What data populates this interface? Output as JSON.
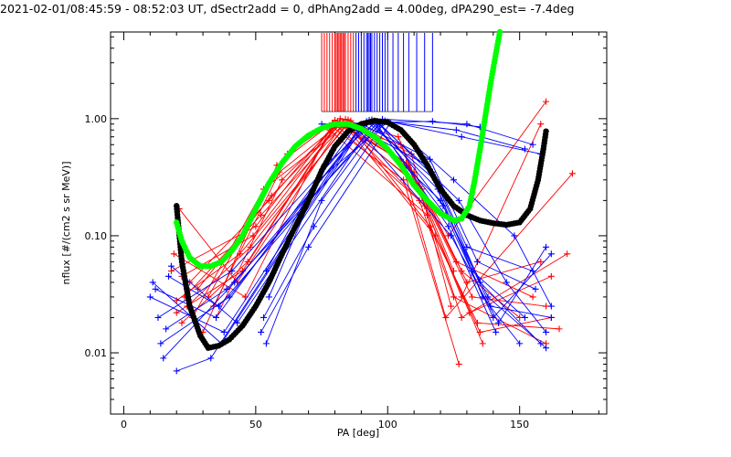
{
  "chart_data": {
    "type": "scatter",
    "title": "2021-02-01/08:45:59 - 08:52:03 UT, dSectr2add = 0, dPhAng2add = 4.00deg, dPA290_est=  -7.4deg",
    "xlabel": "PA [deg]",
    "ylabel": "nflux [#/(cm2 s sr MeV)]",
    "xlim": [
      -5,
      183
    ],
    "ylim": [
      0.003,
      5.5
    ],
    "yscale": "log",
    "x_ticks": [
      "0",
      "50",
      "100",
      "150"
    ],
    "x_tick_values": [
      0,
      50,
      100,
      150
    ],
    "y_ticks": [
      "0.01",
      "0.10",
      "1.00"
    ],
    "y_tick_values": [
      0.01,
      0.1,
      1.0
    ],
    "grid": false,
    "colors": {
      "red": "#ff0000",
      "blue": "#0000ff",
      "black": "#000000",
      "green": "#00ff00"
    },
    "red_sweeps": [
      [
        [
          20,
          0.022
        ],
        [
          45,
          0.05
        ],
        [
          82,
          1.0
        ],
        [
          110,
          0.35
        ],
        [
          128,
          0.05
        ],
        [
          150,
          0.02
        ]
      ],
      [
        [
          22,
          0.018
        ],
        [
          47,
          0.06
        ],
        [
          81,
          0.95
        ],
        [
          108,
          0.4
        ],
        [
          126,
          0.06
        ],
        [
          155,
          0.03
        ]
      ],
      [
        [
          18,
          0.05
        ],
        [
          50,
          0.12
        ],
        [
          80,
          0.9
        ],
        [
          112,
          0.2
        ],
        [
          125,
          0.03
        ],
        [
          160,
          0.012
        ]
      ],
      [
        [
          23,
          0.03
        ],
        [
          52,
          0.15
        ],
        [
          85,
          0.98
        ],
        [
          105,
          0.45
        ],
        [
          122,
          0.02
        ],
        [
          170,
          0.34
        ]
      ],
      [
        [
          25,
          0.04
        ],
        [
          55,
          0.2
        ],
        [
          79,
          0.85
        ],
        [
          106,
          0.3
        ],
        [
          127,
          0.008
        ]
      ],
      [
        [
          21,
          0.17
        ],
        [
          43,
          0.04
        ],
        [
          83,
          0.92
        ],
        [
          118,
          0.1
        ],
        [
          135,
          0.015
        ],
        [
          162,
          0.02
        ]
      ],
      [
        [
          24,
          0.025
        ],
        [
          48,
          0.08
        ],
        [
          84,
          0.88
        ],
        [
          113,
          0.25
        ],
        [
          130,
          0.04
        ],
        [
          158,
          0.06
        ]
      ],
      [
        [
          19,
          0.07
        ],
        [
          46,
          0.03
        ],
        [
          78,
          0.8
        ],
        [
          115,
          0.15
        ],
        [
          128,
          0.02
        ],
        [
          168,
          0.07
        ]
      ],
      [
        [
          26,
          0.02
        ],
        [
          53,
          0.25
        ],
        [
          86,
          0.96
        ],
        [
          109,
          0.5
        ],
        [
          124,
          0.025
        ]
      ],
      [
        [
          22,
          0.045
        ],
        [
          49,
          0.1
        ],
        [
          82,
          0.93
        ],
        [
          111,
          0.28
        ],
        [
          132,
          0.03
        ],
        [
          160,
          0.025
        ]
      ],
      [
        [
          35,
          0.02
        ],
        [
          60,
          0.3
        ],
        [
          81,
          0.9
        ],
        [
          107,
          0.42
        ],
        [
          123,
          0.1
        ],
        [
          160,
          1.4
        ]
      ],
      [
        [
          30,
          0.015
        ],
        [
          58,
          0.4
        ],
        [
          79,
          0.92
        ],
        [
          105,
          0.6
        ],
        [
          128,
          0.03
        ],
        [
          158,
          0.9
        ]
      ],
      [
        [
          32,
          0.03
        ],
        [
          62,
          0.5
        ],
        [
          80,
          0.97
        ],
        [
          104,
          0.7
        ],
        [
          125,
          0.05
        ]
      ],
      [
        [
          28,
          0.035
        ],
        [
          56,
          0.22
        ],
        [
          83,
          0.94
        ],
        [
          114,
          0.18
        ],
        [
          136,
          0.012
        ]
      ],
      [
        [
          20,
          0.028
        ],
        [
          44,
          0.07
        ],
        [
          85,
          0.91
        ],
        [
          116,
          0.12
        ],
        [
          134,
          0.018
        ],
        [
          165,
          0.016
        ]
      ],
      [
        [
          34,
          0.025
        ],
        [
          59,
          0.35
        ],
        [
          84,
          0.99
        ],
        [
          108,
          0.38
        ],
        [
          131,
          0.022
        ],
        [
          162,
          0.045
        ]
      ]
    ],
    "blue_sweeps": [
      [
        [
          12,
          0.035
        ],
        [
          35,
          0.02
        ],
        [
          88,
          0.85
        ],
        [
          115,
          0.4
        ],
        [
          132,
          0.05
        ],
        [
          152,
          0.02
        ]
      ],
      [
        [
          14,
          0.012
        ],
        [
          40,
          0.03
        ],
        [
          92,
          0.95
        ],
        [
          118,
          0.3
        ],
        [
          135,
          0.04
        ],
        [
          158,
          0.012
        ]
      ],
      [
        [
          10,
          0.03
        ],
        [
          38,
          0.015
        ],
        [
          90,
          0.9
        ],
        [
          120,
          0.2
        ],
        [
          138,
          0.03
        ],
        [
          160,
          0.011
        ]
      ],
      [
        [
          15,
          0.009
        ],
        [
          42,
          0.04
        ],
        [
          94,
          0.98
        ],
        [
          122,
          0.15
        ],
        [
          140,
          0.02
        ],
        [
          162,
          0.07
        ]
      ],
      [
        [
          17,
          0.045
        ],
        [
          36,
          0.025
        ],
        [
          96,
          0.92
        ],
        [
          117,
          0.35
        ],
        [
          130,
          0.08
        ],
        [
          155,
          0.05
        ]
      ],
      [
        [
          20,
          0.007
        ],
        [
          33,
          0.009
        ],
        [
          89,
          0.8
        ],
        [
          124,
          0.1
        ],
        [
          142,
          0.018
        ],
        [
          160,
          0.08
        ]
      ],
      [
        [
          13,
          0.02
        ],
        [
          41,
          0.05
        ],
        [
          93,
          0.97
        ],
        [
          119,
          0.25
        ],
        [
          136,
          0.03
        ],
        [
          150,
          0.012
        ]
      ],
      [
        [
          16,
          0.016
        ],
        [
          39,
          0.035
        ],
        [
          97,
          0.9
        ],
        [
          121,
          0.18
        ],
        [
          139,
          0.025
        ],
        [
          162,
          0.02
        ]
      ],
      [
        [
          11,
          0.04
        ],
        [
          37,
          0.012
        ],
        [
          91,
          0.88
        ],
        [
          116,
          0.45
        ],
        [
          134,
          0.06
        ],
        [
          156,
          0.035
        ]
      ],
      [
        [
          18,
          0.055
        ],
        [
          43,
          0.018
        ],
        [
          95,
          0.96
        ],
        [
          123,
          0.12
        ],
        [
          141,
          0.015
        ]
      ],
      [
        [
          54,
          0.012
        ],
        [
          75,
          0.2
        ],
        [
          98,
          0.99
        ],
        [
          130,
          0.9
        ],
        [
          155,
          0.6
        ]
      ],
      [
        [
          53,
          0.02
        ],
        [
          72,
          0.12
        ],
        [
          99,
          0.96
        ],
        [
          128,
          0.7
        ],
        [
          158,
          0.5
        ]
      ],
      [
        [
          55,
          0.03
        ],
        [
          74,
          0.3
        ],
        [
          100,
          0.94
        ],
        [
          126,
          0.8
        ],
        [
          152,
          0.55
        ]
      ],
      [
        [
          52,
          0.015
        ],
        [
          70,
          0.08
        ],
        [
          101,
          0.92
        ],
        [
          125,
          0.3
        ],
        [
          148,
          0.1
        ],
        [
          162,
          0.025
        ]
      ],
      [
        [
          54,
          0.05
        ],
        [
          76,
          0.4
        ],
        [
          96,
          0.95
        ],
        [
          127,
          0.2
        ],
        [
          145,
          0.04
        ],
        [
          160,
          0.015
        ]
      ],
      [
        [
          75,
          0.9
        ],
        [
          117,
          0.95
        ],
        [
          135,
          0.85
        ]
      ]
    ],
    "black_fit": [
      [
        20,
        0.18
      ],
      [
        22,
        0.06
      ],
      [
        25,
        0.025
      ],
      [
        29,
        0.014
      ],
      [
        32,
        0.011
      ],
      [
        36,
        0.0115
      ],
      [
        40,
        0.013
      ],
      [
        45,
        0.017
      ],
      [
        50,
        0.025
      ],
      [
        55,
        0.04
      ],
      [
        60,
        0.07
      ],
      [
        65,
        0.12
      ],
      [
        70,
        0.2
      ],
      [
        75,
        0.36
      ],
      [
        80,
        0.58
      ],
      [
        85,
        0.78
      ],
      [
        90,
        0.9
      ],
      [
        95,
        0.96
      ],
      [
        100,
        0.93
      ],
      [
        105,
        0.8
      ],
      [
        110,
        0.6
      ],
      [
        115,
        0.4
      ],
      [
        120,
        0.25
      ],
      [
        125,
        0.18
      ],
      [
        130,
        0.15
      ],
      [
        135,
        0.135
      ],
      [
        140,
        0.128
      ],
      [
        145,
        0.124
      ],
      [
        150,
        0.13
      ],
      [
        154,
        0.17
      ],
      [
        157,
        0.3
      ],
      [
        159,
        0.55
      ],
      [
        160,
        0.78
      ]
    ],
    "green_fit": [
      [
        20,
        0.13
      ],
      [
        22,
        0.09
      ],
      [
        25,
        0.065
      ],
      [
        29,
        0.055
      ],
      [
        33,
        0.055
      ],
      [
        37,
        0.06
      ],
      [
        41,
        0.075
      ],
      [
        45,
        0.1
      ],
      [
        50,
        0.17
      ],
      [
        55,
        0.28
      ],
      [
        60,
        0.42
      ],
      [
        65,
        0.58
      ],
      [
        70,
        0.72
      ],
      [
        75,
        0.83
      ],
      [
        80,
        0.9
      ],
      [
        85,
        0.9
      ],
      [
        90,
        0.82
      ],
      [
        95,
        0.7
      ],
      [
        100,
        0.55
      ],
      [
        105,
        0.4
      ],
      [
        110,
        0.27
      ],
      [
        115,
        0.2
      ],
      [
        120,
        0.155
      ],
      [
        125,
        0.135
      ],
      [
        128,
        0.14
      ],
      [
        131,
        0.18
      ],
      [
        133,
        0.3
      ],
      [
        135,
        0.55
      ],
      [
        137,
        1.05
      ],
      [
        139,
        2.0
      ],
      [
        141,
        3.6
      ],
      [
        142.5,
        5.5
      ]
    ],
    "red_pa_marks": [
      75,
      76,
      77,
      78,
      79,
      80,
      80.5,
      81,
      81.5,
      82,
      82.5,
      83,
      83.5,
      84,
      85,
      86,
      87
    ],
    "blue_pa_marks": [
      88,
      89,
      90,
      91,
      92,
      92.5,
      93,
      93.5,
      94,
      95,
      96,
      97,
      98,
      99,
      100,
      102,
      104,
      106,
      108,
      111,
      114,
      117
    ]
  }
}
